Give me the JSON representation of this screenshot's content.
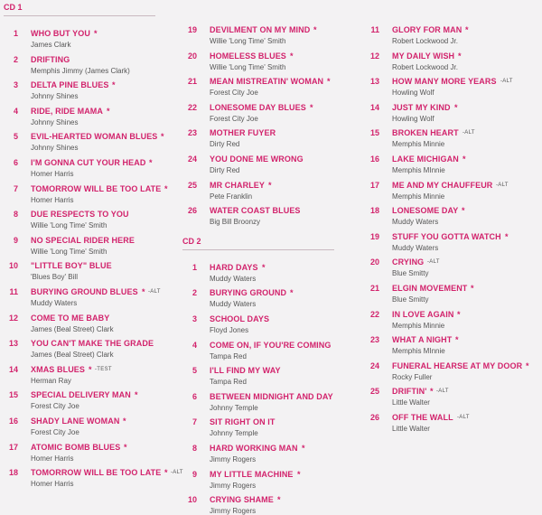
{
  "columns": [
    {
      "blocks": [
        {
          "heading": "CD 1",
          "tracks": [
            {
              "number": 1,
              "title": "WHO BUT YOU",
              "mark": "*",
              "artist": "James Clark"
            },
            {
              "number": 2,
              "title": "DRIFTING",
              "artist": "Memphis Jimmy (James Clark)"
            },
            {
              "number": 3,
              "title": "DELTA PINE BLUES",
              "mark": "*",
              "artist": "Johnny Shines"
            },
            {
              "number": 4,
              "title": "RIDE, RIDE MAMA",
              "mark": "*",
              "artist": "Johnny Shines"
            },
            {
              "number": 5,
              "title": "EVIL-HEARTED WOMAN BLUES",
              "mark": "*",
              "artist": "Johnny Shines"
            },
            {
              "number": 6,
              "title": "I'M GONNA CUT YOUR HEAD",
              "mark": "*",
              "artist": "Homer Harris"
            },
            {
              "number": 7,
              "title": "TOMORROW WILL BE TOO LATE",
              "mark": "*",
              "artist": "Homer Harris"
            },
            {
              "number": 8,
              "title": "DUE RESPECTS TO YOU",
              "artist": "Willie 'Long Time' Smith"
            },
            {
              "number": 9,
              "title": "NO SPECIAL RIDER HERE",
              "artist": "Willie 'Long Time' Smith"
            },
            {
              "number": 10,
              "title": "\"LITTLE BOY\" BLUE",
              "artist": "'Blues Boy' Bill"
            },
            {
              "number": 11,
              "title": "BURYING GROUND BLUES",
              "mark": "*",
              "note": "-ALT",
              "artist": "Muddy Waters"
            },
            {
              "number": 12,
              "title": "COME TO ME BABY",
              "artist": "James (Beal Street) Clark"
            },
            {
              "number": 13,
              "title": "YOU CAN'T MAKE THE GRADE",
              "artist": "James (Beal Street) Clark"
            },
            {
              "number": 14,
              "title": "XMAS BLUES",
              "mark": "*",
              "note": "-TEST",
              "artist": "Herman Ray"
            },
            {
              "number": 15,
              "title": "SPECIAL DELIVERY MAN",
              "mark": "*",
              "artist": "Forest City Joe"
            },
            {
              "number": 16,
              "title": "SHADY LANE WOMAN",
              "mark": "*",
              "artist": "Forest City Joe"
            },
            {
              "number": 17,
              "title": "ATOMIC BOMB BLUES",
              "mark": "*",
              "artist": "Homer Harris"
            },
            {
              "number": 18,
              "title": "TOMORROW WILL BE TOO LATE",
              "mark": "*",
              "note": "-ALT",
              "artist": "Homer Harris"
            }
          ]
        }
      ]
    },
    {
      "blocks": [
        {
          "tracks": [
            {
              "number": 19,
              "title": "DEVILMENT ON MY MIND",
              "mark": "*",
              "artist": "Willie 'Long Time' Smith"
            },
            {
              "number": 20,
              "title": "HOMELESS BLUES",
              "mark": "*",
              "artist": "Willie 'Long Time' Smith"
            },
            {
              "number": 21,
              "title": "MEAN MISTREATIN' WOMAN",
              "mark": "*",
              "artist": "Forest City Joe"
            },
            {
              "number": 22,
              "title": "LONESOME DAY BLUES",
              "mark": "*",
              "artist": "Forest City Joe"
            },
            {
              "number": 23,
              "title": "MOTHER FUYER",
              "artist": "Dirty Red"
            },
            {
              "number": 24,
              "title": "YOU DONE ME WRONG",
              "artist": "Dirty Red"
            },
            {
              "number": 25,
              "title": "MR CHARLEY",
              "mark": "*",
              "artist": "Pete Franklin"
            },
            {
              "number": 26,
              "title": "WATER COAST BLUES",
              "artist": "Big Bill Broonzy"
            }
          ]
        },
        {
          "heading": "CD 2",
          "tracks": [
            {
              "number": 1,
              "title": "HARD DAYS",
              "mark": "*",
              "artist": "Muddy Waters"
            },
            {
              "number": 2,
              "title": "BURYING GROUND",
              "mark": "*",
              "artist": "Muddy Waters"
            },
            {
              "number": 3,
              "title": "SCHOOL DAYS",
              "artist": "Floyd Jones"
            },
            {
              "number": 4,
              "title": "COME ON, IF YOU'RE COMING",
              "artist": "Tampa Red"
            },
            {
              "number": 5,
              "title": "I'LL FIND MY WAY",
              "artist": "Tampa Red"
            },
            {
              "number": 6,
              "title": "BETWEEN MIDNIGHT AND DAY",
              "artist": "Johnny Temple"
            },
            {
              "number": 7,
              "title": "SIT RIGHT ON IT",
              "artist": "Johnny Temple"
            },
            {
              "number": 8,
              "title": "HARD WORKING MAN",
              "mark": "*",
              "artist": "Jimmy Rogers"
            },
            {
              "number": 9,
              "title": "MY LITTLE MACHINE",
              "mark": "*",
              "artist": "Jimmy Rogers"
            },
            {
              "number": 10,
              "title": "CRYING SHAME",
              "mark": "*",
              "artist": "Jimmy Rogers"
            }
          ]
        }
      ]
    },
    {
      "blocks": [
        {
          "tracks": [
            {
              "number": 11,
              "title": "GLORY FOR MAN",
              "mark": "*",
              "artist": "Robert Lockwood Jr."
            },
            {
              "number": 12,
              "title": "MY DAILY WISH",
              "mark": "*",
              "artist": "Robert Lockwood Jr."
            },
            {
              "number": 13,
              "title": "HOW MANY MORE YEARS",
              "note": "-ALT",
              "artist": "Howling Wolf"
            },
            {
              "number": 14,
              "title": "JUST MY KIND",
              "mark": "*",
              "artist": "Howling Wolf"
            },
            {
              "number": 15,
              "title": "BROKEN HEART",
              "note": "-ALT",
              "artist": "Memphis Minnie"
            },
            {
              "number": 16,
              "title": "LAKE MICHIGAN",
              "mark": "*",
              "artist": "Memphis MInnie"
            },
            {
              "number": 17,
              "title": "ME AND MY CHAUFFEUR",
              "note": "-ALT",
              "artist": "Memphis Minnie"
            },
            {
              "number": 18,
              "title": "LONESOME DAY",
              "mark": "*",
              "artist": "Muddy Waters"
            },
            {
              "number": 19,
              "title": "STUFF YOU GOTTA WATCH",
              "mark": "*",
              "artist": "Muddy Waters"
            },
            {
              "number": 20,
              "title": "CRYING",
              "note": "-ALT",
              "artist": "Blue Smitty"
            },
            {
              "number": 21,
              "title": "ELGIN MOVEMENT",
              "mark": "*",
              "artist": "Blue Smitty"
            },
            {
              "number": 22,
              "title": "IN LOVE AGAIN",
              "mark": "*",
              "artist": "Memphis Minnie"
            },
            {
              "number": 23,
              "title": "WHAT A NIGHT",
              "mark": "*",
              "artist": "Memphis MInnie"
            },
            {
              "number": 24,
              "title": "FUNERAL HEARSE AT MY DOOR",
              "mark": "*",
              "artist": "Rocky Fuller"
            },
            {
              "number": 25,
              "title": "DRIFTIN'",
              "mark": "*",
              "note": "-ALT",
              "artist": "Little Walter"
            },
            {
              "number": 26,
              "title": "OFF THE WALL",
              "note": "-ALT",
              "artist": "Little Walter"
            }
          ]
        }
      ]
    }
  ]
}
